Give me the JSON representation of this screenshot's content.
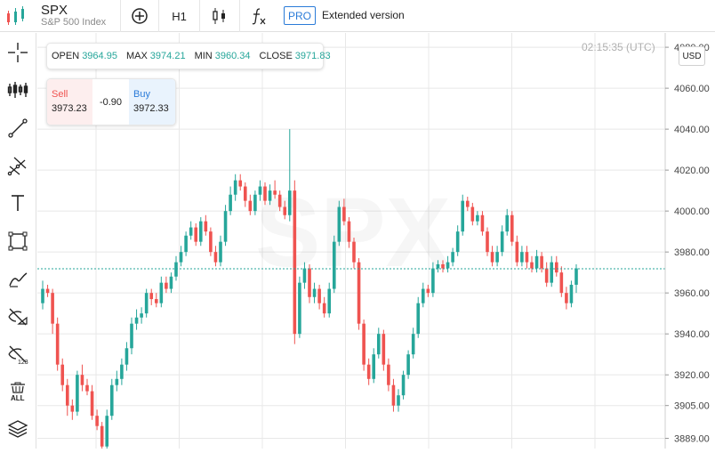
{
  "symbol": {
    "ticker": "SPX",
    "name": "S&P 500 Index"
  },
  "toolbar": {
    "timeframe": "H1",
    "pro_badge": "PRO",
    "extended_label": "Extended version",
    "icons": [
      "add-compare-icon",
      "candles-icon",
      "indicators-fx-icon"
    ]
  },
  "left_tools": [
    "crosshair-icon",
    "indicator-bars-icon",
    "trend-line-icon",
    "pitchfork-icon",
    "text-icon",
    "rectangle-icon",
    "brush-icon",
    "hide-drawings-icon",
    "hide-labels-icon",
    "delete-all-icon",
    "layers-icon"
  ],
  "ohlc": {
    "open_label": "OPEN",
    "open": "3964.95",
    "max_label": "MAX",
    "max": "3974.21",
    "min_label": "MIN",
    "min": "3960.34",
    "close_label": "CLOSE",
    "close": "3971.83"
  },
  "trade": {
    "sell_label": "Sell",
    "sell_price": "3973.23",
    "spread": "-0.90",
    "buy_label": "Buy",
    "buy_price": "3972.33"
  },
  "time": "02:15:35 (UTC)",
  "currency": "USD",
  "watermark": "SPX",
  "colors": {
    "up": "#26a69a",
    "down": "#ef5350",
    "accent": "#2a7bd8",
    "price_line": "#26a69a",
    "grid": "#e8e8e8"
  },
  "chart_data": {
    "type": "candlestick",
    "y_ticks": [
      "4080.00",
      "4060.00",
      "4040.00",
      "4020.00",
      "4000.00",
      "3980.00",
      "3960.00",
      "3940.00",
      "3920.00",
      "3905.00",
      "3889.00"
    ],
    "ylim": [
      3884,
      4087
    ],
    "current_price": 3971.83,
    "grid": true,
    "candles": [
      [
        3955,
        3962,
        3966,
        3952
      ],
      [
        3962,
        3960,
        3964,
        3958
      ],
      [
        3960,
        3945,
        3962,
        3940
      ],
      [
        3945,
        3925,
        3948,
        3922
      ],
      [
        3925,
        3915,
        3928,
        3912
      ],
      [
        3915,
        3905,
        3918,
        3900
      ],
      [
        3905,
        3902,
        3908,
        3898
      ],
      [
        3902,
        3920,
        3922,
        3900
      ],
      [
        3920,
        3915,
        3925,
        3912
      ],
      [
        3915,
        3912,
        3918,
        3910
      ],
      [
        3912,
        3900,
        3915,
        3898
      ],
      [
        3900,
        3895,
        3903,
        3893
      ],
      [
        3895,
        3885,
        3897,
        3882
      ],
      [
        3885,
        3900,
        3903,
        3883
      ],
      [
        3900,
        3915,
        3918,
        3898
      ],
      [
        3915,
        3918,
        3922,
        3912
      ],
      [
        3918,
        3925,
        3928,
        3915
      ],
      [
        3925,
        3933,
        3936,
        3922
      ],
      [
        3933,
        3945,
        3948,
        3930
      ],
      [
        3945,
        3948,
        3952,
        3942
      ],
      [
        3948,
        3950,
        3953,
        3945
      ],
      [
        3950,
        3960,
        3962,
        3948
      ],
      [
        3960,
        3957,
        3962,
        3954
      ],
      [
        3957,
        3955,
        3960,
        3953
      ],
      [
        3955,
        3965,
        3968,
        3953
      ],
      [
        3965,
        3962,
        3968,
        3960
      ],
      [
        3962,
        3968,
        3970,
        3960
      ],
      [
        3968,
        3975,
        3978,
        3966
      ],
      [
        3975,
        3980,
        3983,
        3973
      ],
      [
        3980,
        3988,
        3990,
        3978
      ],
      [
        3988,
        3992,
        3995,
        3986
      ],
      [
        3992,
        3985,
        3994,
        3983
      ],
      [
        3985,
        3995,
        3997,
        3983
      ],
      [
        3995,
        3990,
        3998,
        3988
      ],
      [
        3990,
        3980,
        3992,
        3978
      ],
      [
        3980,
        3975,
        3983,
        3973
      ],
      [
        3975,
        3985,
        3988,
        3973
      ],
      [
        3985,
        4000,
        4003,
        3983
      ],
      [
        4000,
        4008,
        4012,
        3998
      ],
      [
        4008,
        4015,
        4018,
        4005
      ],
      [
        4015,
        4012,
        4018,
        4010
      ],
      [
        4012,
        4005,
        4014,
        4002
      ],
      [
        4005,
        4000,
        4008,
        3998
      ],
      [
        4000,
        4008,
        4010,
        3998
      ],
      [
        4008,
        4012,
        4015,
        4005
      ],
      [
        4012,
        4005,
        4014,
        4003
      ],
      [
        4005,
        4010,
        4013,
        4003
      ],
      [
        4010,
        4008,
        4015,
        4006
      ],
      [
        4008,
        4002,
        4010,
        4000
      ],
      [
        4002,
        3998,
        4005,
        3996
      ],
      [
        3998,
        4010,
        4040,
        3995
      ],
      [
        4010,
        3940,
        4015,
        3935
      ],
      [
        3940,
        3965,
        3968,
        3938
      ],
      [
        3965,
        3972,
        3975,
        3962
      ],
      [
        3972,
        3958,
        3974,
        3955
      ],
      [
        3958,
        3962,
        3965,
        3955
      ],
      [
        3962,
        3955,
        3964,
        3952
      ],
      [
        3955,
        3950,
        3958,
        3948
      ],
      [
        3950,
        3962,
        3965,
        3948
      ],
      [
        3962,
        3985,
        3988,
        3960
      ],
      [
        3985,
        4002,
        4005,
        3983
      ],
      [
        4002,
        3995,
        4006,
        3993
      ],
      [
        3995,
        3985,
        3997,
        3982
      ],
      [
        3985,
        3975,
        3987,
        3972
      ],
      [
        3975,
        3945,
        3977,
        3942
      ],
      [
        3945,
        3925,
        3947,
        3922
      ],
      [
        3925,
        3918,
        3928,
        3915
      ],
      [
        3918,
        3930,
        3933,
        3916
      ],
      [
        3930,
        3940,
        3943,
        3928
      ],
      [
        3940,
        3925,
        3942,
        3922
      ],
      [
        3925,
        3915,
        3928,
        3912
      ],
      [
        3915,
        3905,
        3918,
        3902
      ],
      [
        3905,
        3910,
        3913,
        3902
      ],
      [
        3910,
        3920,
        3922,
        3908
      ],
      [
        3920,
        3930,
        3932,
        3918
      ],
      [
        3930,
        3940,
        3943,
        3928
      ],
      [
        3940,
        3955,
        3958,
        3938
      ],
      [
        3955,
        3962,
        3965,
        3953
      ],
      [
        3962,
        3960,
        3964,
        3958
      ],
      [
        3960,
        3972,
        3975,
        3958
      ],
      [
        3972,
        3974,
        3976,
        3970
      ],
      [
        3974,
        3972,
        3976,
        3970
      ],
      [
        3972,
        3975,
        3978,
        3970
      ],
      [
        3975,
        3980,
        3982,
        3973
      ],
      [
        3980,
        3990,
        3993,
        3978
      ],
      [
        3990,
        4005,
        4008,
        3988
      ],
      [
        4005,
        4002,
        4007,
        4000
      ],
      [
        4002,
        3995,
        4004,
        3993
      ],
      [
        3995,
        3998,
        4000,
        3993
      ],
      [
        3998,
        3990,
        4000,
        3988
      ],
      [
        3990,
        3980,
        3992,
        3978
      ],
      [
        3980,
        3975,
        3983,
        3973
      ],
      [
        3975,
        3980,
        3983,
        3973
      ],
      [
        3980,
        3990,
        3993,
        3978
      ],
      [
        3990,
        3998,
        4001,
        3988
      ],
      [
        3998,
        3985,
        4000,
        3983
      ],
      [
        3985,
        3975,
        3988,
        3973
      ],
      [
        3975,
        3980,
        3983,
        3973
      ],
      [
        3980,
        3975,
        3983,
        3972
      ],
      [
        3975,
        3972,
        3978,
        3970
      ],
      [
        3972,
        3978,
        3981,
        3970
      ],
      [
        3978,
        3972,
        3980,
        3970
      ],
      [
        3972,
        3965,
        3975,
        3963
      ],
      [
        3965,
        3975,
        3978,
        3963
      ],
      [
        3975,
        3970,
        3978,
        3968
      ],
      [
        3970,
        3960,
        3973,
        3958
      ],
      [
        3960,
        3955,
        3963,
        3952
      ],
      [
        3955,
        3964,
        3966,
        3953
      ],
      [
        3964,
        3972,
        3974,
        3960
      ]
    ]
  }
}
